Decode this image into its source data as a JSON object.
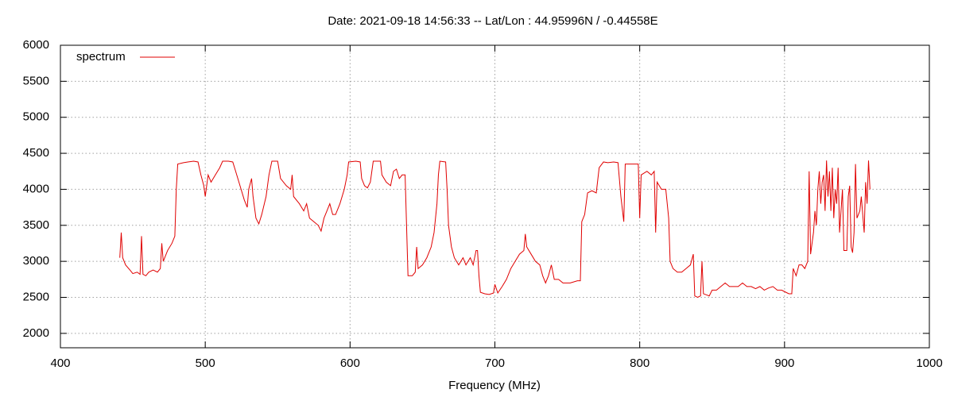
{
  "chart_data": {
    "type": "line",
    "title": "Date: 2021-09-18 14:56:33  --  Lat/Lon : 44.95996N / -0.44558E",
    "xlabel": "Frequency (MHz)",
    "xlim": [
      400,
      1000
    ],
    "xticks": [
      400,
      500,
      600,
      700,
      800,
      900,
      1000
    ],
    "ylim": [
      1800,
      6000
    ],
    "yticks": [
      2000,
      2500,
      3000,
      3500,
      4000,
      4500,
      5000,
      5500,
      6000
    ],
    "grid": true,
    "legend": "upper left",
    "x": [
      441,
      442,
      443,
      445,
      448,
      450,
      453,
      455,
      456,
      457,
      459,
      461,
      464,
      467,
      469,
      470,
      471,
      474,
      477,
      479,
      480,
      481,
      485,
      488,
      492,
      495,
      497,
      499,
      500,
      502,
      504,
      507,
      510,
      512,
      516,
      519,
      521,
      524,
      527,
      529,
      530,
      532,
      533,
      535,
      537,
      539,
      542,
      544,
      546,
      550,
      552,
      556,
      559,
      560,
      561,
      565,
      568,
      570,
      572,
      575,
      578,
      580,
      582,
      584,
      586,
      588,
      590,
      593,
      596,
      598,
      599,
      604,
      607,
      608,
      610,
      612,
      614,
      616,
      621,
      622,
      625,
      628,
      630,
      632,
      634,
      636,
      638,
      639,
      640,
      643,
      645,
      646,
      647,
      650,
      653,
      656,
      658,
      660,
      661,
      662,
      666,
      667,
      668,
      670,
      672,
      675,
      678,
      680,
      683,
      685,
      687,
      688,
      689,
      690,
      693,
      696,
      699,
      700,
      702,
      705,
      708,
      711,
      714,
      717,
      720,
      721,
      722,
      725,
      728,
      731,
      733,
      735,
      737,
      739,
      741,
      744,
      747,
      750,
      752,
      757,
      759,
      760,
      762,
      764,
      767,
      770,
      772,
      775,
      778,
      782,
      785,
      787,
      789,
      790,
      796,
      799,
      800,
      801,
      805,
      808,
      810,
      811,
      812,
      815,
      818,
      820,
      821,
      823,
      826,
      829,
      832,
      835,
      837,
      838,
      840,
      842,
      843,
      844,
      848,
      850,
      853,
      856,
      859,
      862,
      865,
      868,
      871,
      874,
      877,
      880,
      883,
      886,
      889,
      892,
      895,
      898,
      900,
      903,
      905,
      906,
      908,
      910,
      912,
      914,
      916,
      917,
      918,
      920,
      921,
      922,
      923,
      924,
      925,
      926,
      927,
      928,
      929,
      930,
      931,
      932,
      933,
      934,
      935,
      936,
      937,
      938,
      940,
      941,
      943,
      944,
      945,
      946,
      947,
      948,
      949,
      950,
      952,
      953,
      955,
      956,
      957,
      958,
      959
    ],
    "series": [
      {
        "name": "spectrum",
        "color": "#e00000",
        "values": [
          3050,
          3400,
          3050,
          2950,
          2880,
          2830,
          2850,
          2820,
          3350,
          2820,
          2800,
          2850,
          2880,
          2850,
          2900,
          3250,
          3000,
          3150,
          3250,
          3350,
          4000,
          4350,
          4370,
          4380,
          4390,
          4380,
          4200,
          4050,
          3900,
          4200,
          4100,
          4200,
          4300,
          4390,
          4390,
          4380,
          4250,
          4050,
          3850,
          3750,
          4000,
          4150,
          3900,
          3600,
          3520,
          3650,
          3900,
          4200,
          4390,
          4390,
          4150,
          4050,
          4000,
          4200,
          3900,
          3800,
          3700,
          3800,
          3600,
          3550,
          3500,
          3420,
          3600,
          3700,
          3800,
          3650,
          3650,
          3800,
          4000,
          4200,
          4380,
          4390,
          4380,
          4150,
          4050,
          4020,
          4100,
          4390,
          4390,
          4200,
          4100,
          4050,
          4250,
          4280,
          4150,
          4200,
          4200,
          3500,
          2800,
          2800,
          2850,
          3200,
          2900,
          2950,
          3050,
          3200,
          3400,
          3800,
          4200,
          4390,
          4380,
          4000,
          3500,
          3200,
          3050,
          2950,
          3050,
          2950,
          3050,
          2950,
          3150,
          3150,
          2800,
          2570,
          2550,
          2540,
          2560,
          2680,
          2560,
          2650,
          2750,
          2900,
          3000,
          3100,
          3150,
          3380,
          3200,
          3100,
          3000,
          2950,
          2800,
          2700,
          2800,
          2950,
          2750,
          2750,
          2700,
          2700,
          2700,
          2730,
          2730,
          3550,
          3650,
          3950,
          3980,
          3950,
          4300,
          4380,
          4370,
          4380,
          4370,
          3900,
          3550,
          4350,
          4350,
          4350,
          3600,
          4200,
          4250,
          4200,
          4250,
          3400,
          4100,
          4000,
          4000,
          3600,
          3000,
          2900,
          2850,
          2850,
          2900,
          2950,
          3100,
          2520,
          2500,
          2520,
          3000,
          2550,
          2520,
          2600,
          2600,
          2650,
          2700,
          2650,
          2650,
          2650,
          2700,
          2650,
          2650,
          2620,
          2650,
          2600,
          2630,
          2650,
          2600,
          2600,
          2580,
          2550,
          2550,
          2900,
          2800,
          2950,
          2950,
          2900,
          3000,
          4250,
          3100,
          3400,
          3700,
          3500,
          4000,
          4250,
          3800,
          4100,
          4200,
          3700,
          4400,
          3900,
          4250,
          3700,
          4300,
          3600,
          4000,
          3800,
          4300,
          3400,
          4000,
          3150,
          3150,
          3900,
          4050,
          3200,
          3120,
          3400,
          4350,
          3600,
          3700,
          3900,
          3400,
          4100,
          3800,
          4400,
          4000
        ]
      }
    ]
  }
}
